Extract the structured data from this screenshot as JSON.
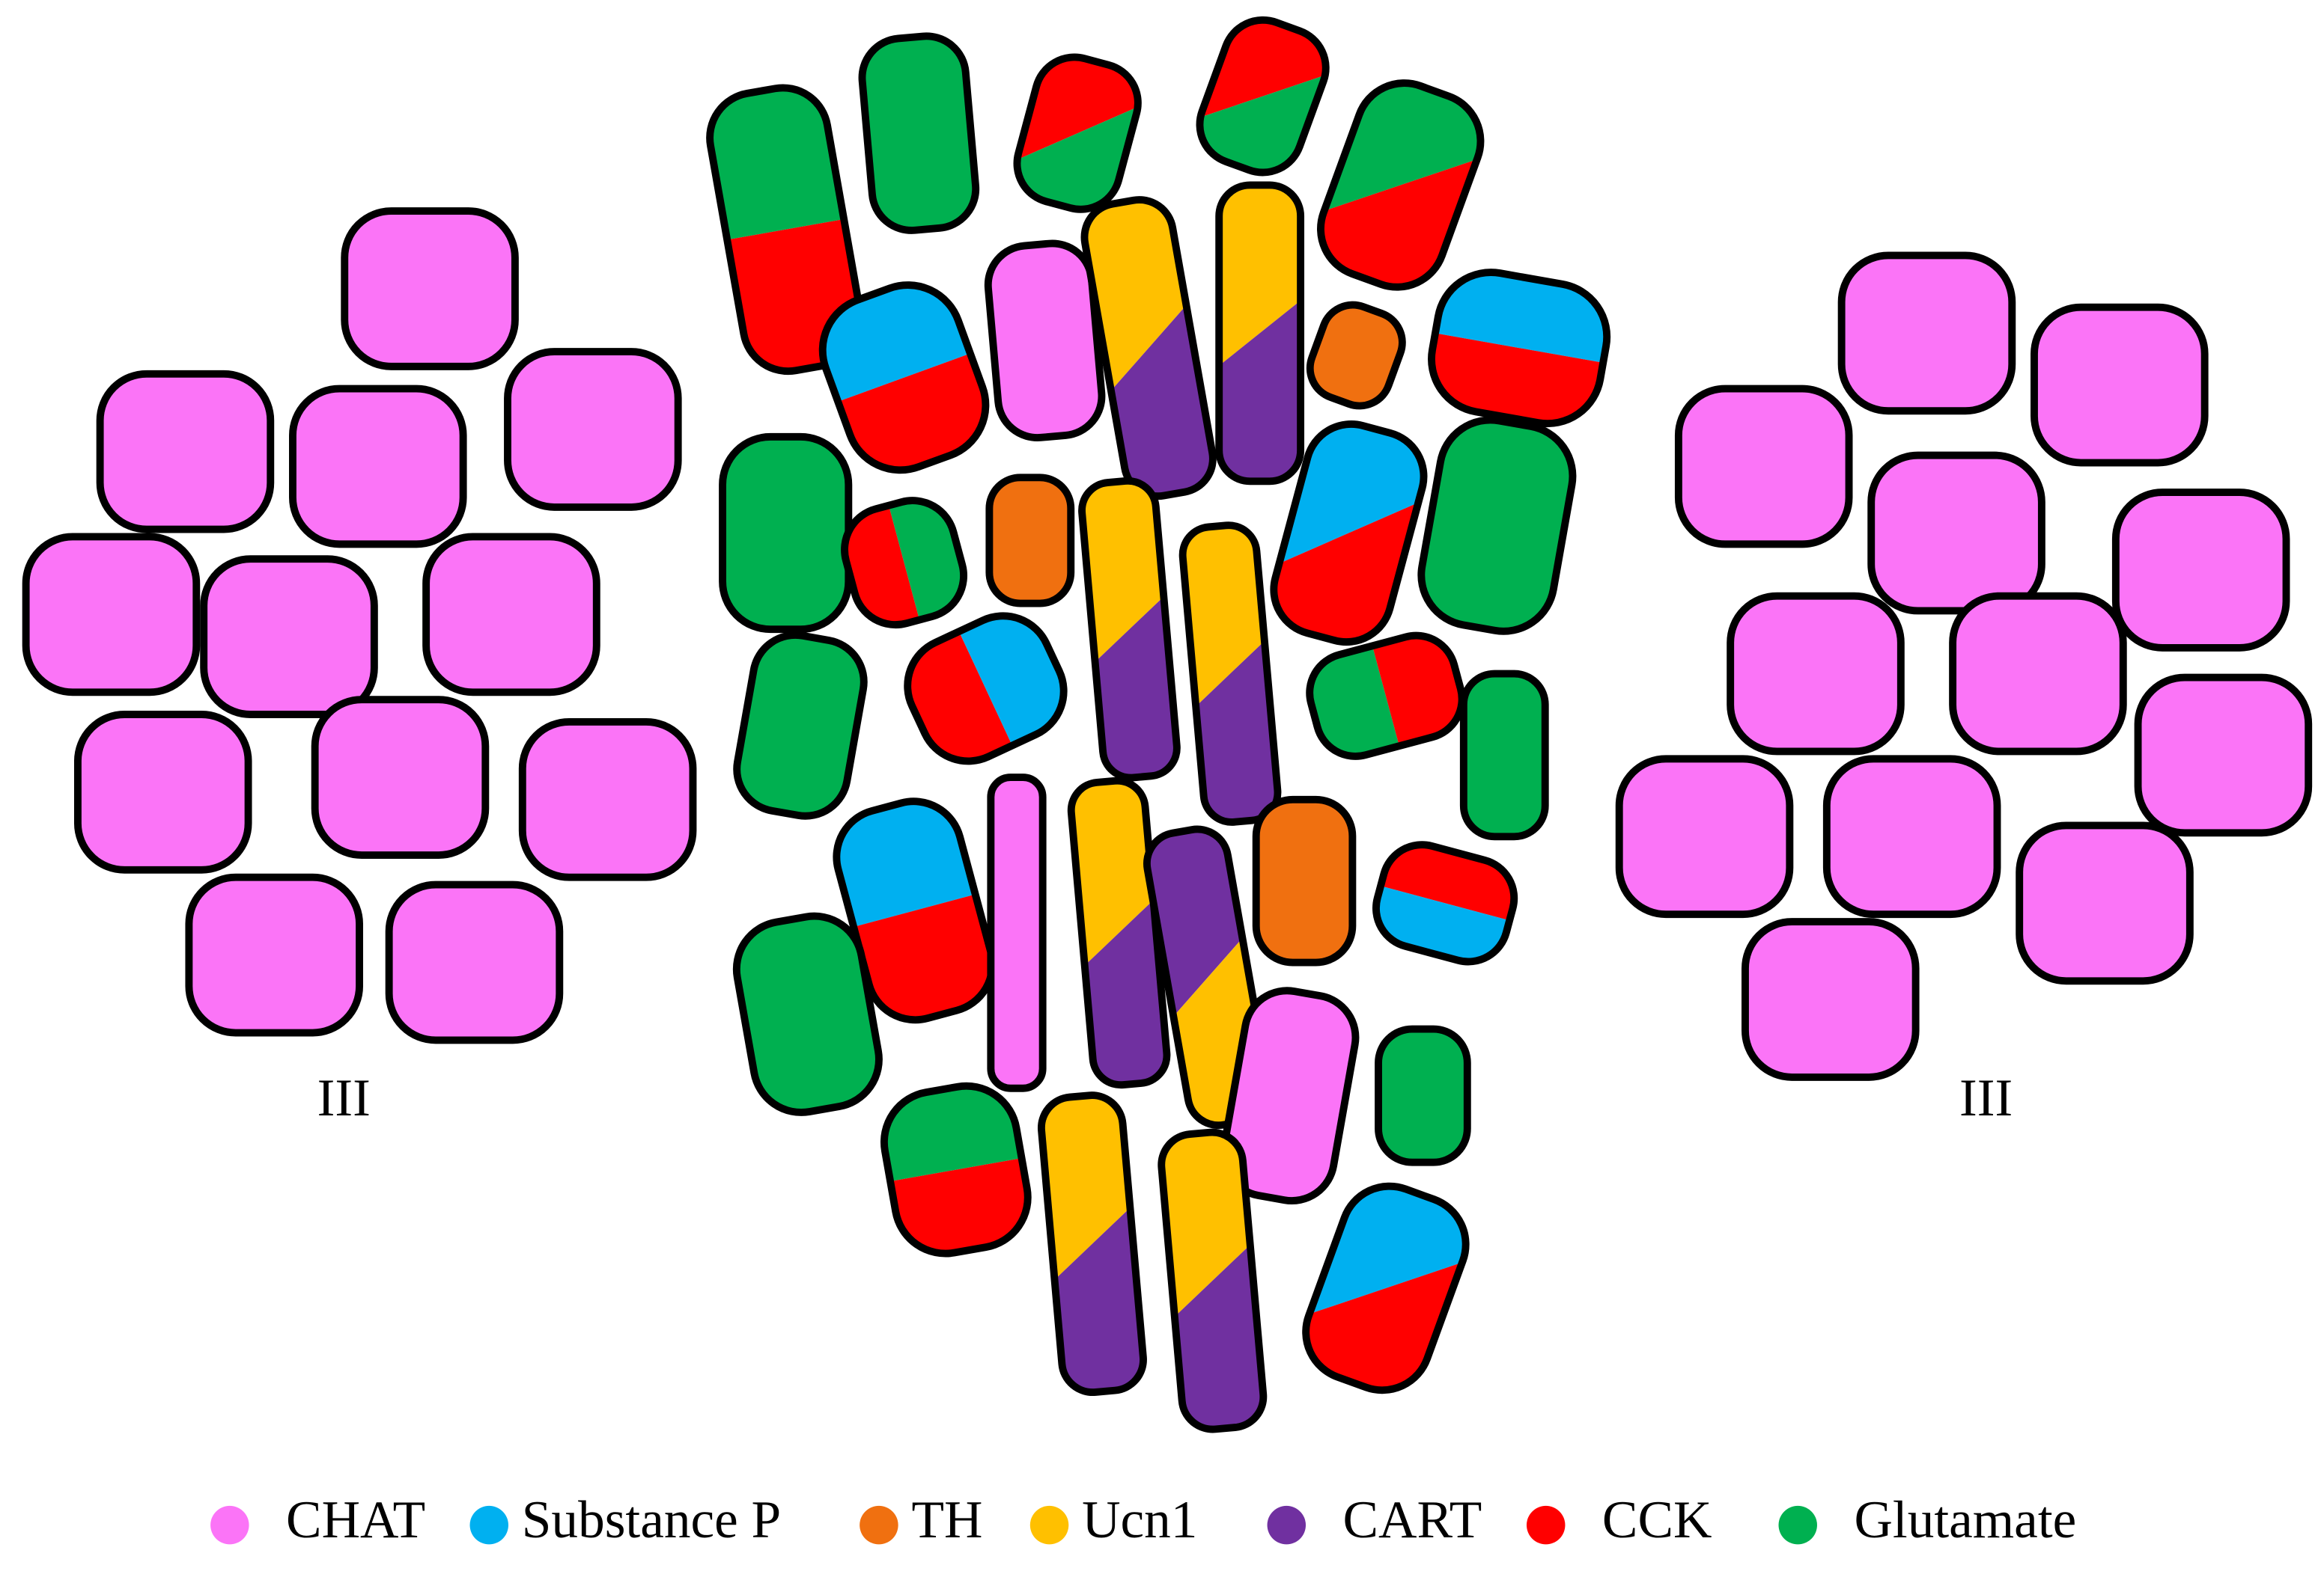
{
  "labels": [
    "III",
    "III"
  ],
  "legend": [
    {
      "label": "CHAT",
      "color": "#fb74f7"
    },
    {
      "label": "Substance P",
      "color": "#00b0f0"
    },
    {
      "label": "TH",
      "color": "#f07010"
    },
    {
      "label": "Ucn1",
      "color": "#ffc000"
    },
    {
      "label": "CART",
      "color": "#7030a0"
    },
    {
      "label": "CCK",
      "color": "#ff0000"
    },
    {
      "label": "Glutamate",
      "color": "#00b050"
    }
  ]
}
